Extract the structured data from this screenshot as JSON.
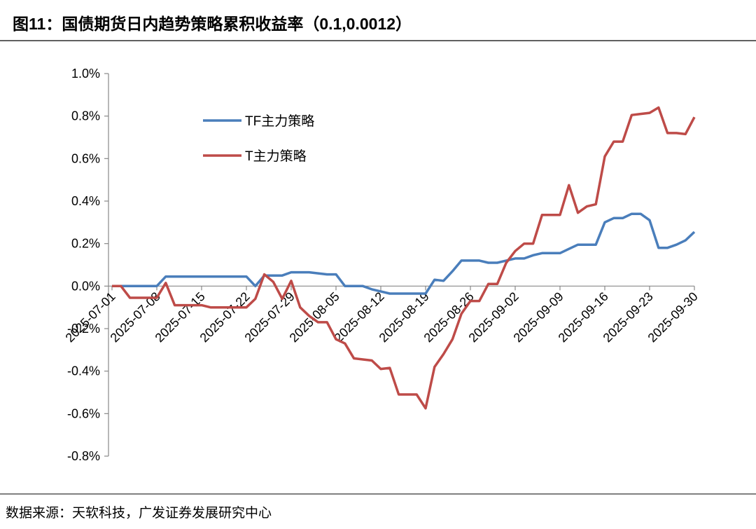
{
  "chart_data": {
    "type": "line",
    "title": "图11：国债期货日内趋势策略累积收益率（0.1,0.0012）",
    "source": "数据来源：天软科技，广发证券发展研究中心",
    "categories": [
      "2025-07-01",
      null,
      null,
      null,
      null,
      "2025-07-08",
      null,
      null,
      null,
      null,
      "2025-07-15",
      null,
      null,
      null,
      null,
      "2025-07-22",
      null,
      null,
      null,
      null,
      "2025-07-29",
      null,
      null,
      null,
      null,
      "2025-08-05",
      null,
      null,
      null,
      null,
      "2025-08-12",
      null,
      null,
      null,
      null,
      "2025-08-19",
      null,
      null,
      null,
      null,
      "2025-08-26",
      null,
      null,
      null,
      null,
      "2025-09-02",
      null,
      null,
      null,
      null,
      "2025-09-09",
      null,
      null,
      null,
      null,
      "2025-09-16",
      null,
      null,
      null,
      null,
      "2025-09-23",
      null,
      null,
      null,
      null,
      "2025-09-30"
    ],
    "series": [
      {
        "name": "TF主力策略",
        "color": "#4a7ebb",
        "values": [
          0,
          0,
          0,
          0,
          0,
          0,
          0.045,
          0.045,
          0.045,
          0.045,
          0.045,
          0.045,
          0.045,
          0.045,
          0.045,
          0.045,
          0,
          0.05,
          0.05,
          0.05,
          0.065,
          0.065,
          0.065,
          0.06,
          0.055,
          0.055,
          0,
          0,
          0,
          -0.015,
          -0.025,
          -0.035,
          -0.035,
          -0.035,
          -0.035,
          -0.035,
          0.03,
          0.025,
          0.07,
          0.12,
          0.12,
          0.12,
          0.11,
          0.11,
          0.12,
          0.13,
          0.13,
          0.145,
          0.155,
          0.155,
          0.155,
          0.175,
          0.195,
          0.195,
          0.195,
          0.3,
          0.32,
          0.32,
          0.34,
          0.34,
          0.31,
          0.18,
          0.18,
          0.195,
          0.215,
          0.255
        ]
      },
      {
        "name": "T主力策略",
        "color": "#be4b48",
        "values": [
          0,
          0,
          -0.055,
          -0.055,
          -0.055,
          -0.055,
          0.015,
          -0.09,
          -0.09,
          -0.09,
          -0.09,
          -0.1,
          -0.1,
          -0.1,
          -0.1,
          -0.1,
          -0.06,
          0.055,
          0.02,
          -0.06,
          0.025,
          -0.1,
          -0.14,
          -0.17,
          -0.17,
          -0.25,
          -0.27,
          -0.34,
          -0.345,
          -0.35,
          -0.39,
          -0.385,
          -0.51,
          -0.51,
          -0.51,
          -0.575,
          -0.38,
          -0.32,
          -0.25,
          -0.13,
          -0.07,
          -0.07,
          0.01,
          0.01,
          0.11,
          0.165,
          0.2,
          0.2,
          0.335,
          0.335,
          0.335,
          0.475,
          0.345,
          0.375,
          0.385,
          0.61,
          0.68,
          0.68,
          0.805,
          0.81,
          0.815,
          0.84,
          0.72,
          0.72,
          0.715,
          0.795
        ]
      }
    ],
    "ylim": [
      -0.8,
      1.0
    ],
    "yticks": [
      {
        "value": -0.8,
        "label": "-0.8%"
      },
      {
        "value": -0.6,
        "label": "-0.6%"
      },
      {
        "value": -0.4,
        "label": "-0.4%"
      },
      {
        "value": -0.2,
        "label": "-0.2%"
      },
      {
        "value": 0,
        "label": "0.0%"
      },
      {
        "value": 0.2,
        "label": "0.2%"
      },
      {
        "value": 0.4,
        "label": "0.4%"
      },
      {
        "value": 0.6,
        "label": "0.6%"
      },
      {
        "value": 0.8,
        "label": "0.8%"
      },
      {
        "value": 1.0,
        "label": "1.0%"
      }
    ],
    "grid": false,
    "legend": "upper left"
  }
}
